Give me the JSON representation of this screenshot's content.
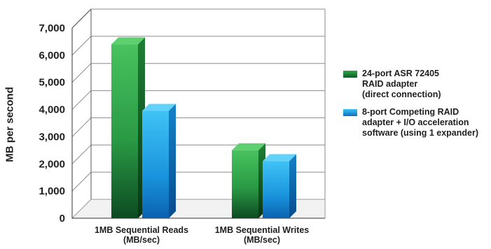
{
  "chart_data": {
    "type": "bar",
    "title": "",
    "xlabel": "",
    "ylabel": "MB per second",
    "ylim": [
      0,
      7000
    ],
    "yticks": [
      "0",
      "1,000",
      "2,000",
      "3,000",
      "4,000",
      "5,000",
      "6,000",
      "7,000"
    ],
    "ytick_values": [
      0,
      1000,
      2000,
      3000,
      4000,
      5000,
      6000,
      7000
    ],
    "categories": [
      [
        "1MB Sequential Reads",
        "(MB/sec)"
      ],
      [
        "1MB Sequential Writes",
        "(MB/sec)"
      ]
    ],
    "series": [
      {
        "name": [
          "24-port ASR 72405",
          "RAID adapter",
          "(direct connection)"
        ],
        "values": [
          6400,
          2500
        ],
        "color": "#2fa84a"
      },
      {
        "name": [
          "8-port Competing RAID",
          "adapter + I/O acceleration",
          "software (using 1 expander)"
        ],
        "values": [
          3950,
          2100
        ],
        "color": "#1eaae8"
      }
    ],
    "grid": true,
    "legend_position": "right",
    "style": "3d"
  }
}
